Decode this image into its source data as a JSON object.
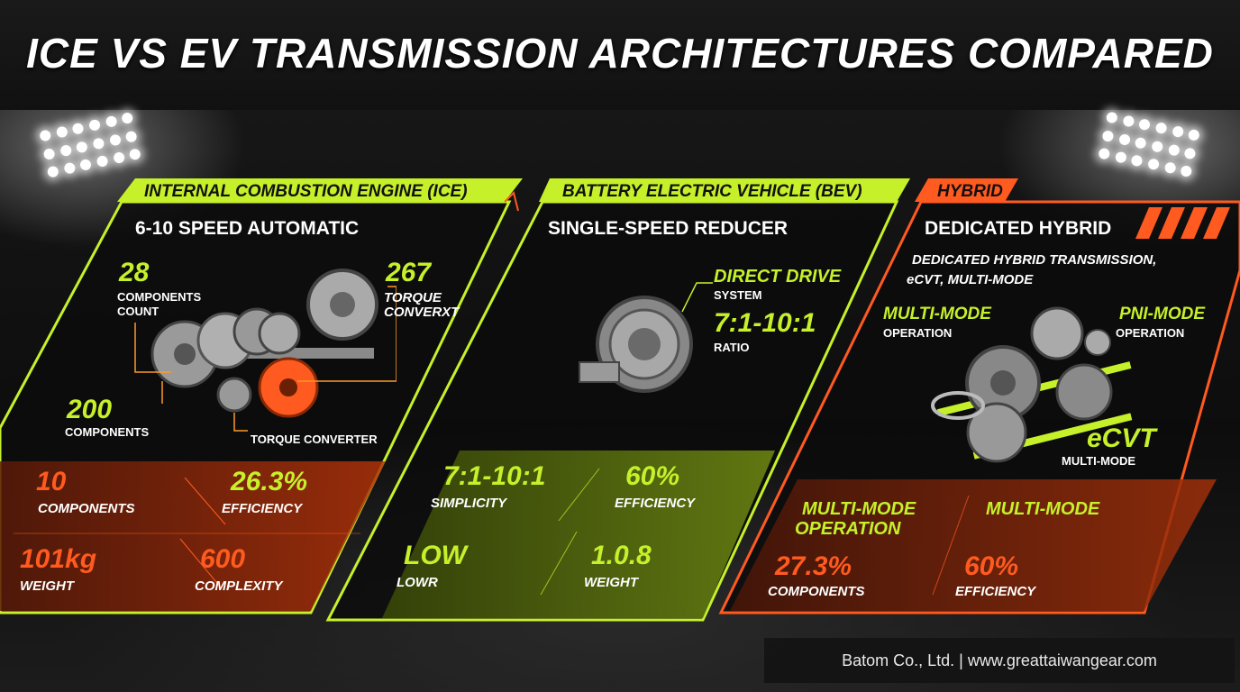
{
  "title": "ICE VS EV TRANSMISSION ARCHITECTURES COMPARED",
  "colors": {
    "lime": "#c6f12a",
    "orange": "#ff5a1f",
    "background": "#0b0b0b"
  },
  "ice": {
    "header": "INTERNAL COMBUSTION ENGINE (ICE)",
    "subtitle": "6-10 SPEED AUTOMATIC",
    "callouts": {
      "components_count_value": "28",
      "components_count_label_1": "COMPONENTS",
      "components_count_label_2": "COUNT",
      "torque_value": "267",
      "torque_label_1": "TORQUE",
      "torque_label_2": "CONVERXT",
      "components_value": "200",
      "components_label": "COMPONENTS",
      "torque_converter_label": "TORQUE CONVERTER"
    },
    "stats": [
      {
        "value": "10",
        "label": "COMPONENTS"
      },
      {
        "value": "26.3%",
        "label": "EFFICIENCY"
      },
      {
        "value": "101kg",
        "label": "WEIGHT"
      },
      {
        "value": "600",
        "label": "COMPLEXITY"
      }
    ]
  },
  "bev": {
    "header": "BATTERY ELECTRIC VEHICLE (BEV)",
    "subtitle": "SINGLE-SPEED REDUCER",
    "callouts": {
      "direct_drive": "DIRECT DRIVE",
      "system": "SYSTEM",
      "ratio_value": "7:1-10:1",
      "ratio_label": "RATIO"
    },
    "stats": [
      {
        "value": "7:1-10:1",
        "label": "SIMPLICITY"
      },
      {
        "value": "60%",
        "label": "EFFICIENCY"
      },
      {
        "value": "LOW",
        "label": "LOWR"
      },
      {
        "value": "1.0.8",
        "label": "WEIGHT"
      }
    ]
  },
  "hybrid": {
    "header": "HYBRID",
    "subtitle": "DEDICATED HYBRID",
    "description_1": "DEDICATED HYBRID TRANSMISSION,",
    "description_2": "eCVT, MULTI-MODE",
    "callouts": {
      "multi_mode": "MULTI-MODE",
      "multi_mode_op": "OPERATION",
      "pni_mode": "PNI-MODE",
      "pni_mode_op": "OPERATION",
      "ecvt": "eCVT",
      "ecvt_label": "MULTI-MODE"
    },
    "stat_headers": [
      "MULTI-MODE",
      "OPERATION",
      "MULTI-MODE"
    ],
    "stats": [
      {
        "value": "27.3%",
        "label": "COMPONENTS"
      },
      {
        "value": "60%",
        "label": "EFFICIENCY"
      }
    ]
  },
  "footer": "Batom Co., Ltd. | www.greattaiwangear.com"
}
